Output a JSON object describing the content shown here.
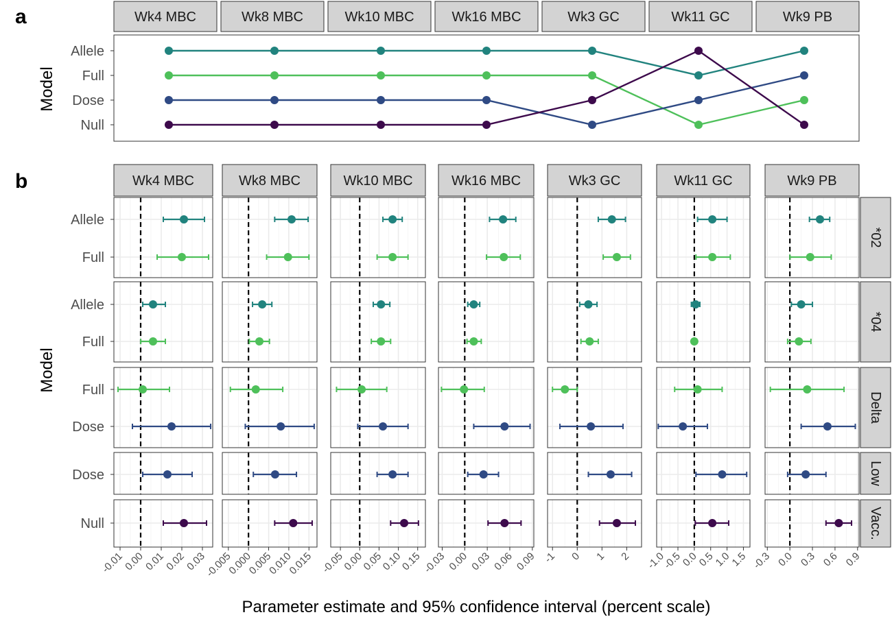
{
  "figure": {
    "panel_a_label": "a",
    "panel_b_label": "b",
    "x_axis_title": "Parameter estimate and 95% confidence interval (percent scale)",
    "y_axis_title": "Model"
  },
  "colors": {
    "Allele": "#21837E",
    "Full": "#4EC05A",
    "Dose": "#2F4A84",
    "Null": "#3D0A4C",
    "strip_fill": "#D3D3D3",
    "grid": "#EBEBEB"
  },
  "chart_data": [
    {
      "type": "line",
      "panel": "a",
      "ylabel": "Model",
      "categories": [
        "Wk4 MBC",
        "Wk8 MBC",
        "Wk10 MBC",
        "Wk16 MBC",
        "Wk3 GC",
        "Wk11 GC",
        "Wk9 PB"
      ],
      "y_levels": [
        "Null",
        "Dose",
        "Full",
        "Allele"
      ],
      "series": [
        {
          "name": "Allele",
          "values": [
            "Allele",
            "Allele",
            "Allele",
            "Allele",
            "Allele",
            "Full",
            "Allele"
          ]
        },
        {
          "name": "Full",
          "values": [
            "Full",
            "Full",
            "Full",
            "Full",
            "Full",
            "Null",
            "Dose"
          ]
        },
        {
          "name": "Dose",
          "values": [
            "Dose",
            "Dose",
            "Dose",
            "Dose",
            "Null",
            "Dose",
            "Full"
          ]
        },
        {
          "name": "Null",
          "values": [
            "Null",
            "Null",
            "Null",
            "Null",
            "Dose",
            "Allele",
            "Null"
          ]
        }
      ]
    },
    {
      "type": "scatter",
      "panel": "b",
      "xlabel": "Parameter estimate and 95% confidence interval (percent scale)",
      "ylabel": "Model",
      "reference_line_x": 0,
      "columns": [
        {
          "name": "Wk4 MBC",
          "xlim": [
            -0.013,
            0.035
          ],
          "ticks": [
            -0.01,
            0.0,
            0.01,
            0.02,
            0.03
          ],
          "tick_labels": [
            "-0.01",
            "0.00",
            "0.01",
            "0.02",
            "0.03"
          ]
        },
        {
          "name": "Wk8 MBC",
          "xlim": [
            -0.0065,
            0.017
          ],
          "ticks": [
            -0.005,
            0.0,
            0.005,
            0.01,
            0.015
          ],
          "tick_labels": [
            "-0.005",
            "0.000",
            "0.005",
            "0.010",
            "0.015"
          ]
        },
        {
          "name": "Wk10 MBC",
          "xlim": [
            -0.075,
            0.17
          ],
          "ticks": [
            -0.05,
            0.0,
            0.05,
            0.1,
            0.15
          ],
          "tick_labels": [
            "-0.05",
            "0.00",
            "0.05",
            "0.10",
            "0.15"
          ]
        },
        {
          "name": "Wk16 MBC",
          "xlim": [
            -0.035,
            0.092
          ],
          "ticks": [
            -0.03,
            0.0,
            0.03,
            0.06,
            0.09
          ],
          "tick_labels": [
            "-0.03",
            "0.00",
            "0.03",
            "0.06",
            "0.09"
          ]
        },
        {
          "name": "Wk3 GC",
          "xlim": [
            -1.2,
            2.6
          ],
          "ticks": [
            -1,
            0,
            1,
            2
          ],
          "tick_labels": [
            "-1",
            "0",
            "1",
            "2"
          ]
        },
        {
          "name": "Wk11 GC",
          "xlim": [
            -1.15,
            1.7
          ],
          "ticks": [
            -1.0,
            -0.5,
            0.0,
            0.5,
            1.0,
            1.5
          ],
          "tick_labels": [
            "-1.0",
            "-0.5",
            "0.0",
            "0.5",
            "1.0",
            "1.5"
          ]
        },
        {
          "name": "Wk9 PB",
          "xlim": [
            -0.33,
            0.92
          ],
          "ticks": [
            -0.3,
            0.0,
            0.3,
            0.6,
            0.9
          ],
          "tick_labels": [
            "-0.3",
            "0.0",
            "0.3",
            "0.6",
            "0.9"
          ]
        }
      ],
      "rows": [
        {
          "name": "*02",
          "levels": [
            "Allele",
            "Full"
          ]
        },
        {
          "name": "*04",
          "levels": [
            "Allele",
            "Full"
          ]
        },
        {
          "name": "Delta",
          "levels": [
            "Full",
            "Dose"
          ]
        },
        {
          "name": "Low",
          "levels": [
            "Dose"
          ]
        },
        {
          "name": "Vacc.",
          "levels": [
            "Null"
          ]
        }
      ],
      "estimates": [
        {
          "row": "*02",
          "model": "Allele",
          "values": [
            [
              0.021,
              0.011,
              0.031
            ],
            [
              0.0107,
              0.0065,
              0.0148
            ],
            [
              0.085,
              0.06,
              0.11
            ],
            [
              0.051,
              0.033,
              0.068
            ],
            [
              1.4,
              0.85,
              1.95
            ],
            [
              0.55,
              0.1,
              1.0
            ],
            [
              0.4,
              0.26,
              0.53
            ]
          ]
        },
        {
          "row": "*02",
          "model": "Full",
          "values": [
            [
              0.02,
              0.008,
              0.033
            ],
            [
              0.0098,
              0.0045,
              0.015
            ],
            [
              0.085,
              0.045,
              0.125
            ],
            [
              0.052,
              0.029,
              0.074
            ],
            [
              1.6,
              1.05,
              2.15
            ],
            [
              0.55,
              0.05,
              1.1
            ],
            [
              0.27,
              0.0,
              0.55
            ]
          ]
        },
        {
          "row": "*04",
          "model": "Allele",
          "values": [
            [
              0.006,
              0.001,
              0.012
            ],
            [
              0.0034,
              0.001,
              0.0058
            ],
            [
              0.055,
              0.035,
              0.078
            ],
            [
              0.012,
              0.004,
              0.02
            ],
            [
              0.45,
              0.1,
              0.8
            ],
            [
              0.04,
              -0.09,
              0.17
            ],
            [
              0.15,
              0.02,
              0.3
            ]
          ]
        },
        {
          "row": "*04",
          "model": "Full",
          "values": [
            [
              0.006,
              0.0,
              0.012
            ],
            [
              0.0027,
              0.0002,
              0.0052
            ],
            [
              0.055,
              0.03,
              0.08
            ],
            [
              0.012,
              0.003,
              0.022
            ],
            [
              0.5,
              0.15,
              0.85
            ],
            [
              0.0,
              0.0,
              0.0
            ],
            [
              0.12,
              -0.03,
              0.28
            ]
          ]
        },
        {
          "row": "Delta",
          "model": "Full",
          "values": [
            [
              0.001,
              -0.011,
              0.014
            ],
            [
              0.0018,
              -0.0045,
              0.0085
            ],
            [
              0.005,
              -0.06,
              0.07
            ],
            [
              -0.001,
              -0.031,
              0.026
            ],
            [
              -0.5,
              -1.0,
              0.0
            ],
            [
              0.1,
              -0.6,
              0.85
            ],
            [
              0.23,
              -0.26,
              0.72
            ]
          ]
        },
        {
          "row": "Delta",
          "model": "Dose",
          "values": [
            [
              0.015,
              -0.004,
              0.034
            ],
            [
              0.008,
              -0.0008,
              0.0163
            ],
            [
              0.06,
              -0.005,
              0.125
            ],
            [
              0.053,
              0.012,
              0.087
            ],
            [
              0.55,
              -0.7,
              1.85
            ],
            [
              -0.35,
              -1.1,
              0.4
            ],
            [
              0.5,
              0.15,
              0.87
            ]
          ]
        },
        {
          "row": "Low",
          "model": "Dose",
          "values": [
            [
              0.013,
              0.001,
              0.025
            ],
            [
              0.0066,
              0.0012,
              0.0119
            ],
            [
              0.085,
              0.045,
              0.125
            ],
            [
              0.025,
              0.004,
              0.045
            ],
            [
              1.35,
              0.45,
              2.2
            ],
            [
              0.85,
              0.05,
              1.6
            ],
            [
              0.21,
              -0.03,
              0.48
            ]
          ]
        },
        {
          "row": "Vacc.",
          "model": "Null",
          "values": [
            [
              0.021,
              0.011,
              0.032
            ],
            [
              0.0111,
              0.0065,
              0.0158
            ],
            [
              0.115,
              0.08,
              0.152
            ],
            [
              0.053,
              0.031,
              0.075
            ],
            [
              1.6,
              0.9,
              2.35
            ],
            [
              0.55,
              0.03,
              1.05
            ],
            [
              0.65,
              0.48,
              0.82
            ]
          ]
        }
      ]
    }
  ]
}
